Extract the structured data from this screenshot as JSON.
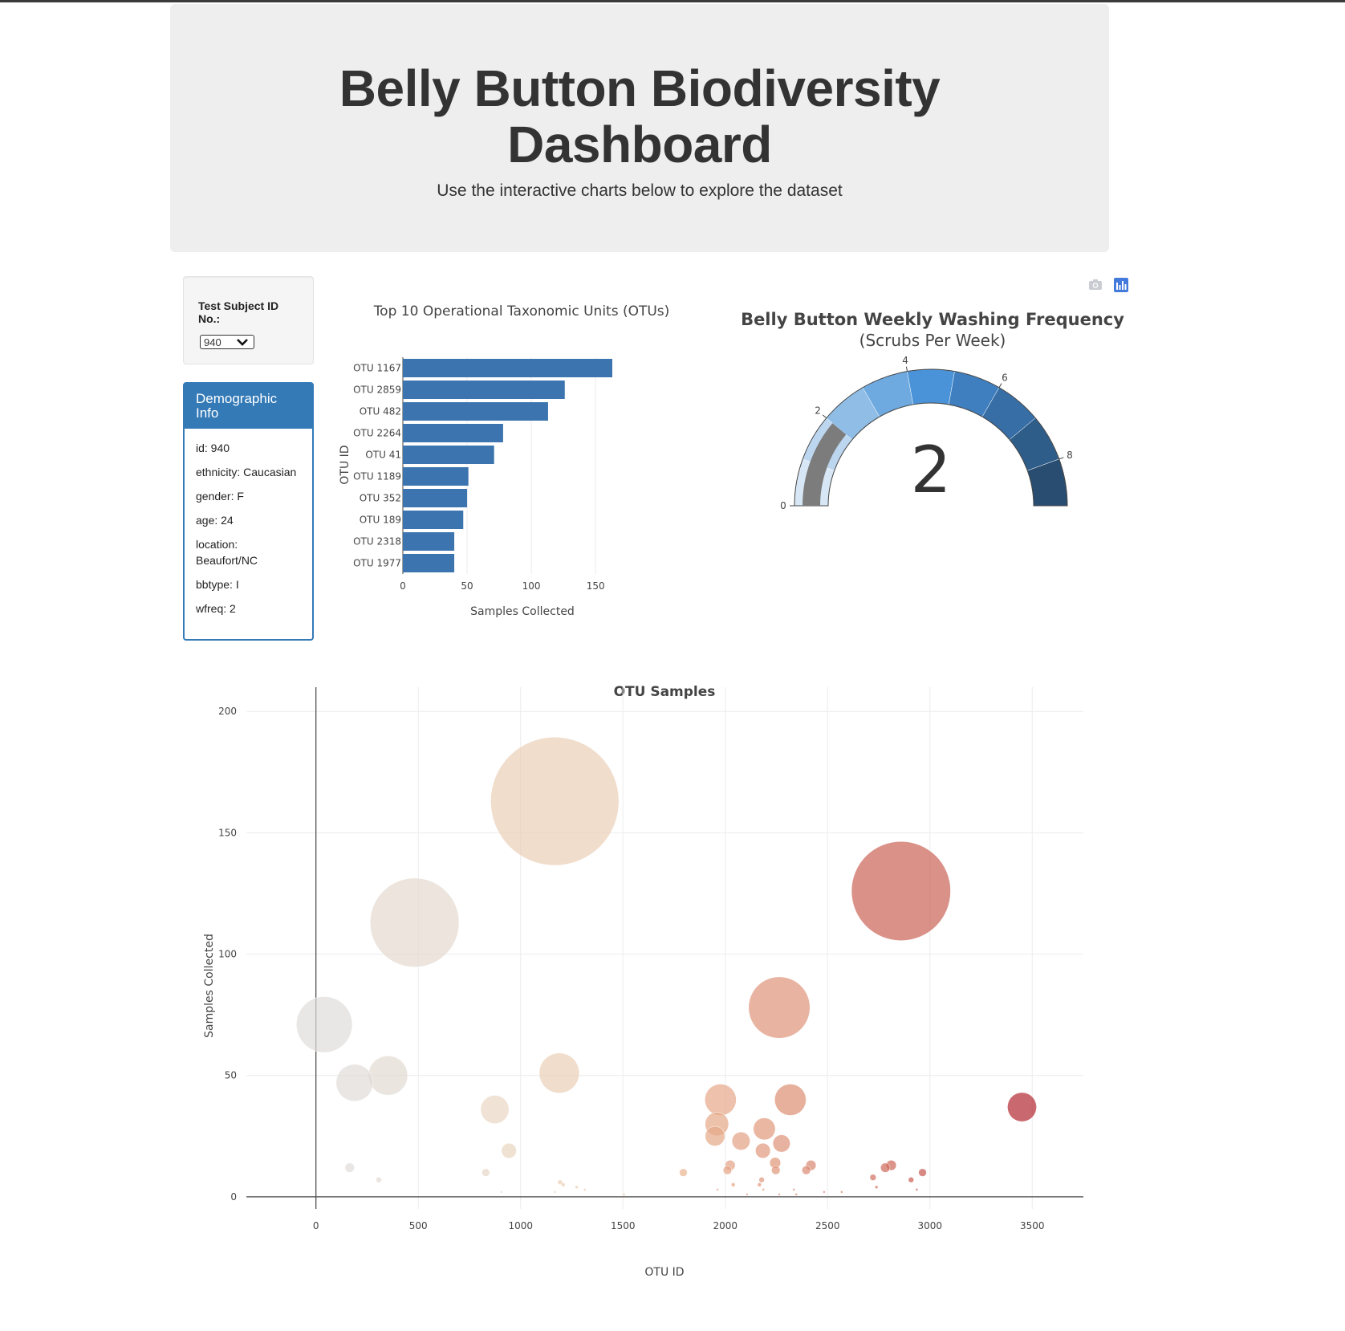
{
  "header": {
    "title": "Belly Button Biodiversity Dashboard",
    "subtitle": "Use the interactive charts below to explore the dataset"
  },
  "selector": {
    "label": "Test Subject ID No.:",
    "selected": "940",
    "icon": "chevron-down-icon"
  },
  "demographics": {
    "title": "Demographic Info",
    "rows": [
      "id: 940",
      "ethnicity: Caucasian",
      "gender: F",
      "age: 24",
      "location: Beaufort/NC",
      "bbtype: I",
      "wfreq: 2"
    ]
  },
  "modebar": {
    "icons": [
      "camera-icon",
      "plotly-logo-icon"
    ]
  },
  "colors": {
    "bar": "#3b74ae",
    "panel": "#337ab7",
    "jumbotron": "#eeeeee"
  },
  "chart_data": [
    {
      "type": "bar",
      "orientation": "horizontal",
      "title": "Top 10 Operational Taxonomic Units (OTUs)",
      "xlabel": "Samples Collected",
      "ylabel": "OTU ID",
      "categories": [
        "OTU 1167",
        "OTU 2859",
        "OTU 482",
        "OTU 2264",
        "OTU 41",
        "OTU 1189",
        "OTU 352",
        "OTU 189",
        "OTU 2318",
        "OTU 1977"
      ],
      "values": [
        163,
        126,
        113,
        78,
        71,
        51,
        50,
        47,
        40,
        40
      ],
      "xlim": [
        0,
        163
      ],
      "xticks": [
        0,
        50,
        100,
        150
      ],
      "grid": true
    },
    {
      "type": "gauge",
      "title": "Belly Button Weekly Washing Frequency",
      "subtitle": "(Scrubs Per Week)",
      "value": 2,
      "range": [
        0,
        9
      ],
      "ticks": [
        0,
        2,
        4,
        6,
        8
      ],
      "steps": [
        {
          "range": [
            0,
            1
          ],
          "color": "#d7e7f5"
        },
        {
          "range": [
            1,
            2
          ],
          "color": "#bcd6ef"
        },
        {
          "range": [
            2,
            3
          ],
          "color": "#8fbde6"
        },
        {
          "range": [
            3,
            4
          ],
          "color": "#6ea9df"
        },
        {
          "range": [
            4,
            5
          ],
          "color": "#4a93d8"
        },
        {
          "range": [
            5,
            6
          ],
          "color": "#3f7fbf"
        },
        {
          "range": [
            6,
            7
          ],
          "color": "#376ea5"
        },
        {
          "range": [
            7,
            8
          ],
          "color": "#2f5d8a"
        },
        {
          "range": [
            8,
            9
          ],
          "color": "#284d70"
        }
      ],
      "bar_color": "#7c7c7c"
    },
    {
      "type": "scatter",
      "mode": "bubble",
      "title": "OTU Samples",
      "xlabel": "OTU ID",
      "ylabel": "Samples Collected",
      "xlim": [
        -340,
        3750
      ],
      "ylim": [
        -5,
        210
      ],
      "xticks": [
        0,
        500,
        1000,
        1500,
        2000,
        2500,
        3000,
        3500
      ],
      "yticks": [
        0,
        50,
        100,
        150,
        200
      ],
      "colorscale": "RdBu-reversed (warm)",
      "points": [
        {
          "x": 1167,
          "y": 163
        },
        {
          "x": 2859,
          "y": 126
        },
        {
          "x": 482,
          "y": 113
        },
        {
          "x": 2264,
          "y": 78
        },
        {
          "x": 41,
          "y": 71
        },
        {
          "x": 1189,
          "y": 51
        },
        {
          "x": 352,
          "y": 50
        },
        {
          "x": 189,
          "y": 47
        },
        {
          "x": 2318,
          "y": 40
        },
        {
          "x": 1977,
          "y": 40
        },
        {
          "x": 3450,
          "y": 37
        },
        {
          "x": 874,
          "y": 36
        },
        {
          "x": 1959,
          "y": 30
        },
        {
          "x": 2191,
          "y": 28
        },
        {
          "x": 1950,
          "y": 25
        },
        {
          "x": 2077,
          "y": 23
        },
        {
          "x": 2275,
          "y": 22
        },
        {
          "x": 943,
          "y": 19
        },
        {
          "x": 2184,
          "y": 19
        },
        {
          "x": 2244,
          "y": 14
        },
        {
          "x": 2024,
          "y": 13
        },
        {
          "x": 2419,
          "y": 13
        },
        {
          "x": 2811,
          "y": 13
        },
        {
          "x": 165,
          "y": 12
        },
        {
          "x": 2782,
          "y": 12
        },
        {
          "x": 2247,
          "y": 11
        },
        {
          "x": 2011,
          "y": 11
        },
        {
          "x": 2396,
          "y": 11
        },
        {
          "x": 2964,
          "y": 10
        },
        {
          "x": 830,
          "y": 10
        },
        {
          "x": 1795,
          "y": 10
        },
        {
          "x": 2722,
          "y": 8
        },
        {
          "x": 307,
          "y": 7
        },
        {
          "x": 2178,
          "y": 7
        },
        {
          "x": 2908,
          "y": 7
        },
        {
          "x": 1193,
          "y": 6
        },
        {
          "x": 1208,
          "y": 5
        },
        {
          "x": 2039,
          "y": 5
        },
        {
          "x": 2167,
          "y": 5
        },
        {
          "x": 1274,
          "y": 4
        },
        {
          "x": 2739,
          "y": 4
        },
        {
          "x": 1314,
          "y": 3
        },
        {
          "x": 1962,
          "y": 3
        },
        {
          "x": 2186,
          "y": 3
        },
        {
          "x": 2335,
          "y": 3
        },
        {
          "x": 2936,
          "y": 3
        },
        {
          "x": 907,
          "y": 2
        },
        {
          "x": 1167,
          "y": 2
        },
        {
          "x": 2483,
          "y": 2
        },
        {
          "x": 2569,
          "y": 2
        },
        {
          "x": 1505,
          "y": 1
        },
        {
          "x": 2107,
          "y": 1
        },
        {
          "x": 2264,
          "y": 1
        },
        {
          "x": 2347,
          "y": 1
        }
      ]
    }
  ]
}
